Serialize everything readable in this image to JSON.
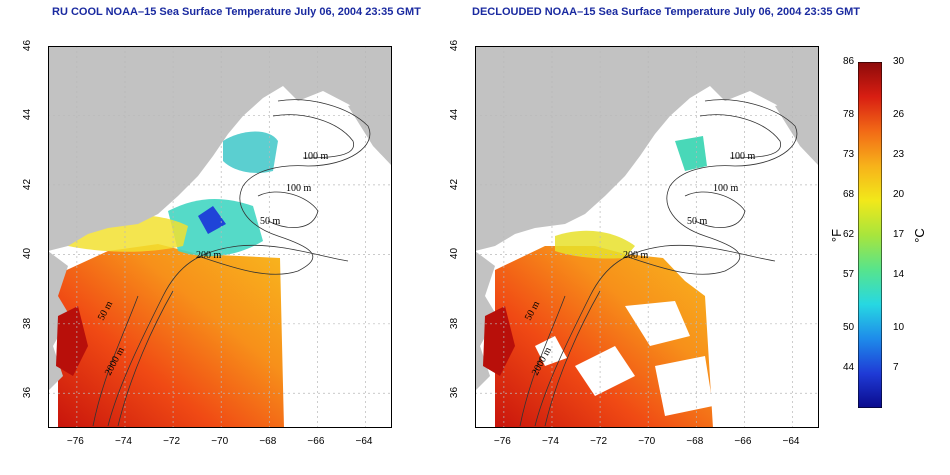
{
  "panels": [
    {
      "title": "RU COOL NOAA–15 Sea Surface Temperature July 06, 2004 23:35 GMT",
      "variant": "raw",
      "contour_labels": [
        "100 m",
        "100 m",
        "50 m",
        "200 m",
        "50 m",
        "2000 m"
      ]
    },
    {
      "title": "DECLOUDED NOAA–15 Sea Surface Temperature July 06, 2004 23:35 GMT",
      "variant": "declouded",
      "contour_labels": [
        "100 m",
        "100 m",
        "50 m",
        "200 m",
        "50 m",
        "2000 m"
      ]
    }
  ],
  "axes": {
    "lon_ticks": [
      "−76",
      "−74",
      "−72",
      "−70",
      "−68",
      "−66",
      "−64"
    ],
    "lat_ticks": [
      "46",
      "44",
      "42",
      "40",
      "38",
      "36"
    ],
    "lon_range": [
      -77.2,
      -62.9
    ],
    "lat_range": [
      35.0,
      46.0
    ]
  },
  "colorbar": {
    "unit_f": "°F",
    "unit_c": "°C",
    "f_ticks": [
      "86",
      "78",
      "73",
      "68",
      "62",
      "57",
      "50",
      "44"
    ],
    "c_ticks": [
      "30",
      "26",
      "23",
      "20",
      "17",
      "14",
      "10",
      "7"
    ],
    "c_range": [
      4,
      30
    ],
    "colors": [
      "#0a0a8c",
      "#1f3bd6",
      "#1e8bea",
      "#27d8e2",
      "#57e48c",
      "#a8e53c",
      "#f2e81a",
      "#f7b21a",
      "#f26a16",
      "#d81e12",
      "#8c0a0a"
    ]
  },
  "colors": {
    "land": "#c2c2c2",
    "title": "#1a2aa0",
    "grid": "#b8b8b8",
    "contour": "#333333"
  }
}
